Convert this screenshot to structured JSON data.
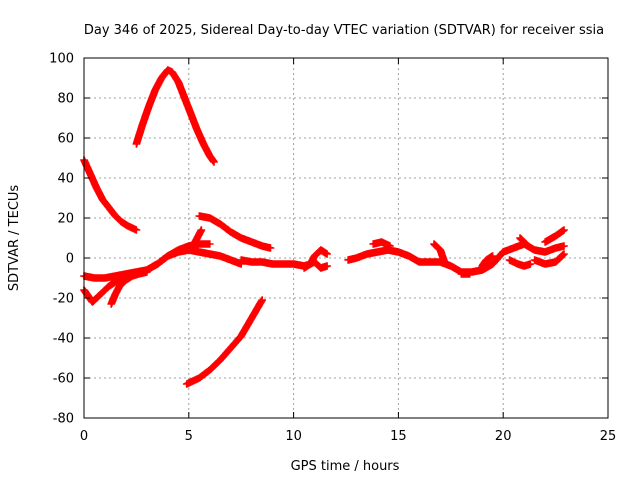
{
  "chart_data": {
    "type": "scatter",
    "title": "Day 346 of 2025, Sidereal Day-to-day VTEC variation (SDTVAR) for receiver ssia",
    "xlabel": "GPS time / hours",
    "ylabel": "SDTVAR / TECUs",
    "xlim": [
      0,
      25
    ],
    "ylim": [
      -80,
      100
    ],
    "xticks": [
      0,
      5,
      10,
      15,
      20,
      25
    ],
    "yticks": [
      -80,
      -60,
      -40,
      -20,
      0,
      20,
      40,
      60,
      80,
      100
    ],
    "xtick_labels": [
      "0",
      "5",
      "10",
      "15",
      "20",
      "25"
    ],
    "ytick_labels": [
      "-80",
      "-60",
      "-40",
      "-20",
      "0",
      "20",
      "40",
      "60",
      "80",
      "100"
    ],
    "grid": true,
    "legend": "none",
    "marker_color": "#ff0000",
    "series": [
      {
        "x": [
          2.5,
          2.8,
          3.1,
          3.4,
          3.7,
          4.0,
          4.2,
          4.5,
          4.8,
          5.1,
          5.4,
          5.7,
          6.0,
          6.2
        ],
        "y": [
          57,
          67,
          76,
          84,
          90,
          94,
          93,
          88,
          80,
          72,
          64,
          57,
          51,
          48
        ]
      },
      {
        "x": [
          0.0,
          0.3,
          0.6,
          0.9,
          1.2,
          1.5,
          1.8,
          2.1,
          2.5
        ],
        "y": [
          49,
          42,
          35,
          29,
          25,
          21,
          18,
          16,
          14
        ]
      },
      {
        "x": [
          5.5,
          6.0,
          6.5,
          7.0,
          7.5,
          8.0,
          8.5,
          8.9
        ],
        "y": [
          21,
          20,
          17,
          13,
          10,
          8,
          6,
          5
        ]
      },
      {
        "x": [
          0.0,
          0.5,
          1.0,
          1.5,
          2.0,
          2.5,
          3.0,
          3.5,
          4.0,
          4.5,
          5.0,
          5.5,
          6.0,
          6.5,
          7.0,
          7.5
        ],
        "y": [
          -9,
          -10,
          -10,
          -9,
          -8,
          -7,
          -6,
          -3,
          1,
          3,
          4,
          3,
          2,
          1,
          -1,
          -3
        ]
      },
      {
        "x": [
          2.0,
          2.5,
          3.0,
          3.5,
          4.0,
          4.5,
          5.0,
          5.5,
          6.0
        ],
        "y": [
          -9,
          -8,
          -6,
          -3,
          1,
          4,
          6,
          7,
          7
        ]
      },
      {
        "x": [
          0.0,
          0.2,
          0.4,
          0.6,
          0.9,
          1.2,
          1.5,
          1.8
        ],
        "y": [
          -16,
          -19,
          -22,
          -20,
          -17,
          -14,
          -12,
          -10
        ]
      },
      {
        "x": [
          1.3,
          1.5,
          1.7,
          2.0,
          2.3,
          2.6,
          3.0
        ],
        "y": [
          -23,
          -18,
          -14,
          -11,
          -9,
          -8,
          -7
        ]
      },
      {
        "x": [
          5.0,
          5.3,
          5.6
        ],
        "y": [
          4,
          8,
          14
        ]
      },
      {
        "x": [
          4.9,
          5.5,
          6.0,
          6.5,
          7.0,
          7.5,
          8.0,
          8.5
        ],
        "y": [
          -63,
          -60,
          -56,
          -51,
          -45,
          -39,
          -30,
          -21
        ]
      },
      {
        "x": [
          7.5,
          8.0,
          8.5,
          9.0,
          9.5,
          10.0,
          10.5,
          10.8,
          11.0,
          11.3,
          11.6
        ],
        "y": [
          -1,
          -2,
          -2,
          -3,
          -3,
          -3,
          -4,
          -3,
          1,
          4,
          2
        ]
      },
      {
        "x": [
          10.5,
          10.8,
          11.0,
          11.3,
          11.6
        ],
        "y": [
          -5,
          -3,
          -2,
          -5,
          -4
        ]
      },
      {
        "x": [
          12.6,
          13.0,
          13.5,
          14.0,
          14.5,
          15.0,
          15.5,
          16.0,
          16.5,
          17.0,
          17.5,
          18.0,
          18.5,
          19.0,
          19.5,
          20.0
        ],
        "y": [
          -1,
          0,
          2,
          3,
          4,
          3,
          1,
          -2,
          -2,
          -2,
          -4,
          -7,
          -7,
          -6,
          -3,
          3
        ]
      },
      {
        "x": [
          13.8,
          14.2,
          14.6
        ],
        "y": [
          7,
          8,
          6
        ]
      },
      {
        "x": [
          16.7,
          17.0,
          17.2
        ],
        "y": [
          7,
          4,
          -2
        ]
      },
      {
        "x": [
          18.0,
          18.4
        ],
        "y": [
          -8,
          -8
        ]
      },
      {
        "x": [
          19.0,
          19.2,
          19.5
        ],
        "y": [
          -4,
          -1,
          1
        ]
      },
      {
        "x": [
          20.0,
          20.5,
          21.0,
          21.5,
          22.0,
          22.5,
          22.9
        ],
        "y": [
          3,
          5,
          7,
          4,
          3,
          5,
          6
        ]
      },
      {
        "x": [
          20.3,
          20.7,
          21.0,
          21.3
        ],
        "y": [
          -1,
          -3,
          -4,
          -3
        ]
      },
      {
        "x": [
          20.8,
          21.1
        ],
        "y": [
          10,
          7
        ]
      },
      {
        "x": [
          21.5,
          22.0,
          22.5,
          22.9
        ],
        "y": [
          -1,
          -3,
          -2,
          2
        ]
      },
      {
        "x": [
          22.0,
          22.5,
          22.9
        ],
        "y": [
          8,
          11,
          14
        ]
      }
    ]
  }
}
